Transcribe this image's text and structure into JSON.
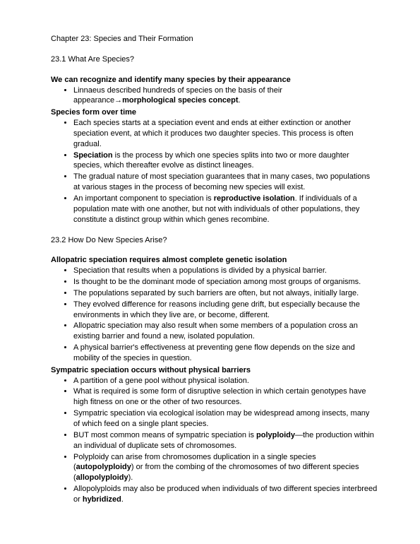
{
  "chapterTitle": "Chapter 23: Species and Their Formation",
  "s1": {
    "num": "23.1 What Are Species?",
    "h1": "We can recognize and identify many species by their appearance",
    "b1a": "Linnaeus described hundreds of species on the basis of their appearance",
    "b1arrow": "→",
    "b1b": "morphological species concept",
    "b1c": ".",
    "h2": "Species form over time",
    "b2": "Each species starts at a speciation event and ends at either extinction or another speciation event, at which it produces two daughter species. This process is often gradual.",
    "b3a": "Speciation",
    "b3b": " is the process by which one species splits into two or more daughter species, which thereafter evolve as distinct lineages.",
    "b4": "The gradual nature of most speciation guarantees that in many cases, two populations at various stages in the process of becoming new species will exist.",
    "b5a": "An important component to speciation is ",
    "b5b": "reproductive isolation",
    "b5c": ". If individuals of a population mate with one another, but not with individuals of other populations, they constitute a distinct group within which genes recombine."
  },
  "s2": {
    "num": "23.2 How Do New Species Arise?",
    "h1": "Allopatric speciation requires almost complete genetic isolation",
    "b1": "Speciation that results when a populations is divided by a physical barrier.",
    "b2": "Is thought to be the dominant mode of speciation among most groups of organisms.",
    "b3": "The populations separated by such barriers are often, but not always, initially large.",
    "b4": "They evolved difference for reasons including gene drift, but especially because the environments in which they live are, or become, different.",
    "b5": "Allopatric speciation may also result when some members of a population cross an existing barrier and found a new, isolated population.",
    "b6": "A physical barrier's effectiveness at preventing gene flow depends on the size and mobility of the species in question.",
    "h2": "Sympatric speciation occurs without physical barriers",
    "c1": "A partition of a gene pool without physical isolation.",
    "c2": "What is required is some form of disruptive selection in which certain genotypes have high fitness on one or the other of two resources.",
    "c3": "Sympatric speciation via ecological isolation may be widespread among insects, many of which feed on a single plant species.",
    "c4a": "BUT most common means of sympatric speciation is ",
    "c4b": "polyploidy",
    "c4c": "—the production within an individual of duplicate sets of chromosomes.",
    "c5a": "Polyploidy can arise from chromosomes duplication in a single species (",
    "c5b": "autopolyploidy",
    "c5c": ") or from the combing of the chromosomes of two different species (",
    "c5d": "allopolyploidy",
    "c5e": ").",
    "c6a": "Allopolyploids may also be produced when individuals of two different species interbreed or ",
    "c6b": "hybridized",
    "c6c": "."
  }
}
